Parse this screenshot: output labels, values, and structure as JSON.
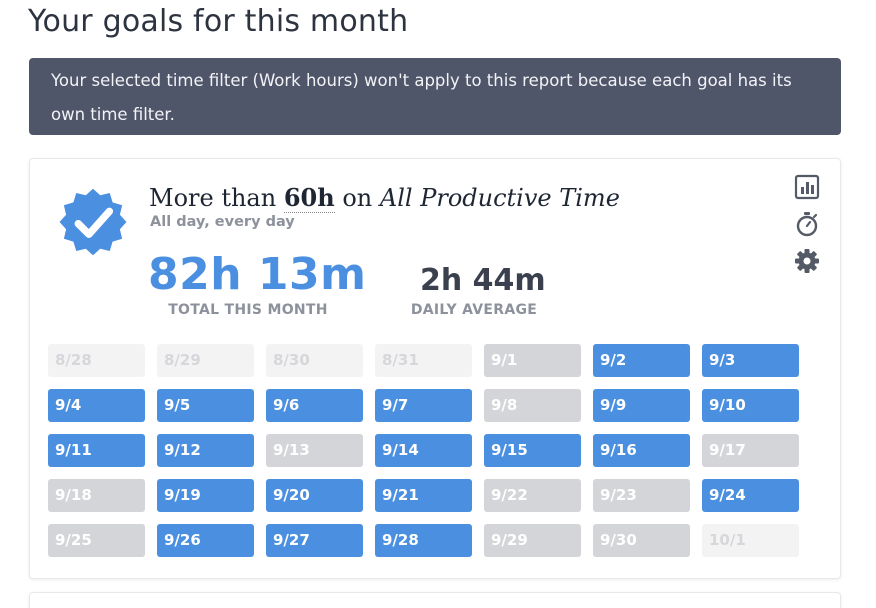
{
  "page": {
    "title": "Your goals for this month"
  },
  "notice": {
    "text": "Your selected time filter (Work hours) won't apply to this report because each goal has its own time filter."
  },
  "goal": {
    "prefix": "More than",
    "amount": "60h",
    "connector": "on",
    "target": "All Productive Time",
    "schedule": "All day, every day",
    "status_icon": "check-badge-icon",
    "total_value": "82h 13m",
    "total_label": "TOTAL THIS MONTH",
    "avg_value": "2h 44m",
    "avg_label": "DAILY AVERAGE",
    "actions": [
      {
        "name": "report-chart-icon"
      },
      {
        "name": "stopwatch-icon"
      },
      {
        "name": "settings-gear-icon"
      }
    ]
  },
  "colors": {
    "met": "#4a8fe0",
    "missed": "#d4d5d8",
    "out": "#f3f3f4",
    "notice_bg": "#505669"
  },
  "calendar": {
    "days": [
      {
        "label": "8/28",
        "state": "out"
      },
      {
        "label": "8/29",
        "state": "out"
      },
      {
        "label": "8/30",
        "state": "out"
      },
      {
        "label": "8/31",
        "state": "out"
      },
      {
        "label": "9/1",
        "state": "missed"
      },
      {
        "label": "9/2",
        "state": "met"
      },
      {
        "label": "9/3",
        "state": "met"
      },
      {
        "label": "9/4",
        "state": "met"
      },
      {
        "label": "9/5",
        "state": "met"
      },
      {
        "label": "9/6",
        "state": "met"
      },
      {
        "label": "9/7",
        "state": "met"
      },
      {
        "label": "9/8",
        "state": "missed"
      },
      {
        "label": "9/9",
        "state": "met"
      },
      {
        "label": "9/10",
        "state": "met"
      },
      {
        "label": "9/11",
        "state": "met"
      },
      {
        "label": "9/12",
        "state": "met"
      },
      {
        "label": "9/13",
        "state": "missed"
      },
      {
        "label": "9/14",
        "state": "met"
      },
      {
        "label": "9/15",
        "state": "met"
      },
      {
        "label": "9/16",
        "state": "met"
      },
      {
        "label": "9/17",
        "state": "missed"
      },
      {
        "label": "9/18",
        "state": "missed"
      },
      {
        "label": "9/19",
        "state": "met"
      },
      {
        "label": "9/20",
        "state": "met"
      },
      {
        "label": "9/21",
        "state": "met"
      },
      {
        "label": "9/22",
        "state": "missed"
      },
      {
        "label": "9/23",
        "state": "missed"
      },
      {
        "label": "9/24",
        "state": "met"
      },
      {
        "label": "9/25",
        "state": "missed"
      },
      {
        "label": "9/26",
        "state": "met"
      },
      {
        "label": "9/27",
        "state": "met"
      },
      {
        "label": "9/28",
        "state": "met"
      },
      {
        "label": "9/29",
        "state": "missed"
      },
      {
        "label": "9/30",
        "state": "missed"
      },
      {
        "label": "10/1",
        "state": "out"
      }
    ]
  }
}
